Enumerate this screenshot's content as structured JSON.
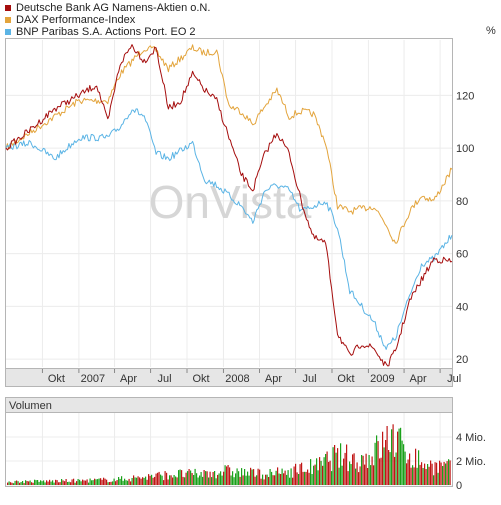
{
  "legend": [
    {
      "name": "Deutsche Bank AG Namens-Aktien o.N.",
      "color": "#a50d0d"
    },
    {
      "name": "DAX Performance-Index",
      "color": "#e3a43c"
    },
    {
      "name": "BNP Paribas S.A. Actions Port. EO 2",
      "color": "#5bb4e5"
    }
  ],
  "price_unit": "%",
  "watermark": "OnVista",
  "volume_title": "Volumen",
  "chart_data": [
    {
      "type": "line",
      "ylabel": "%",
      "ylim": [
        17,
        141
      ],
      "yticks": [
        20,
        40,
        60,
        80,
        100,
        120
      ],
      "x_tick_labels": [
        "Okt",
        "2007",
        "Apr",
        "Jul",
        "Okt",
        "2008",
        "Apr",
        "Jul",
        "Okt",
        "2009",
        "Apr",
        "Jul"
      ],
      "xlim": [
        "2006-07-01",
        "2009-07-31"
      ],
      "grid": true,
      "series": [
        {
          "name": "Deutsche Bank AG Namens-Aktien o.N.",
          "color": "#a50d0d",
          "x": [
            "2006-07-01",
            "2006-09-01",
            "2006-11-01",
            "2007-01-01",
            "2007-02-15",
            "2007-03-15",
            "2007-04-15",
            "2007-05-15",
            "2007-06-15",
            "2007-07-15",
            "2007-08-15",
            "2007-09-15",
            "2007-10-15",
            "2007-11-15",
            "2007-12-15",
            "2008-01-15",
            "2008-02-15",
            "2008-03-15",
            "2008-04-15",
            "2008-05-15",
            "2008-06-15",
            "2008-07-15",
            "2008-08-15",
            "2008-09-15",
            "2008-10-15",
            "2008-11-15",
            "2008-12-15",
            "2009-01-15",
            "2009-02-15",
            "2009-03-10",
            "2009-04-15",
            "2009-05-15",
            "2009-06-15",
            "2009-07-31"
          ],
          "values": [
            100,
            107,
            115,
            120,
            124,
            110,
            132,
            139,
            133,
            138,
            115,
            118,
            128,
            122,
            118,
            104,
            90,
            84,
            98,
            106,
            98,
            80,
            66,
            64,
            30,
            21,
            26,
            24,
            17,
            23,
            42,
            50,
            58,
            57
          ]
        },
        {
          "name": "DAX Performance-Index",
          "color": "#e3a43c",
          "x": [
            "2006-07-01",
            "2006-09-01",
            "2006-11-01",
            "2007-01-01",
            "2007-03-15",
            "2007-04-15",
            "2007-05-15",
            "2007-06-15",
            "2007-07-15",
            "2007-08-15",
            "2007-10-15",
            "2007-11-15",
            "2007-12-15",
            "2008-01-15",
            "2008-02-15",
            "2008-03-15",
            "2008-04-15",
            "2008-05-15",
            "2008-06-15",
            "2008-07-15",
            "2008-08-15",
            "2008-09-15",
            "2008-10-15",
            "2008-11-15",
            "2008-12-15",
            "2009-01-15",
            "2009-02-15",
            "2009-03-10",
            "2009-04-15",
            "2009-05-15",
            "2009-06-15",
            "2009-07-31"
          ],
          "values": [
            100,
            106,
            112,
            118,
            118,
            128,
            133,
            138,
            137,
            130,
            138,
            136,
            137,
            116,
            114,
            109,
            116,
            122,
            112,
            114,
            113,
            102,
            78,
            76,
            77,
            78,
            71,
            64,
            76,
            82,
            80,
            92
          ]
        },
        {
          "name": "BNP Paribas S.A. Actions Port. EO 2",
          "color": "#5bb4e5",
          "x": [
            "2006-07-01",
            "2006-09-01",
            "2006-11-01",
            "2007-01-01",
            "2007-03-15",
            "2007-04-15",
            "2007-05-15",
            "2007-06-15",
            "2007-07-15",
            "2007-08-15",
            "2007-10-15",
            "2007-11-15",
            "2007-12-15",
            "2008-01-15",
            "2008-02-15",
            "2008-03-15",
            "2008-04-15",
            "2008-05-15",
            "2008-06-15",
            "2008-07-15",
            "2008-08-15",
            "2008-09-15",
            "2008-10-15",
            "2008-11-15",
            "2008-12-15",
            "2009-01-15",
            "2009-02-15",
            "2009-03-10",
            "2009-04-15",
            "2009-05-15",
            "2009-06-15",
            "2009-07-31"
          ],
          "values": [
            100,
            102,
            96,
            104,
            104,
            108,
            115,
            112,
            98,
            96,
            102,
            88,
            86,
            82,
            78,
            72,
            84,
            86,
            84,
            76,
            78,
            80,
            70,
            46,
            40,
            34,
            24,
            28,
            44,
            56,
            58,
            67
          ]
        }
      ]
    },
    {
      "type": "bar",
      "title": "Volumen",
      "ylabel": "Mio.",
      "yticks": [
        0,
        2,
        4
      ],
      "ytick_labels": [
        "0",
        "2 Mio.",
        "4 Mio."
      ],
      "ylim": [
        0,
        6
      ],
      "xlim": [
        "2006-07-01",
        "2009-07-31"
      ],
      "colors": {
        "up": "#1aa11a",
        "down": "#c01515"
      },
      "x": [
        "2006-07-01",
        "2006-10-01",
        "2007-01-01",
        "2007-04-01",
        "2007-07-01",
        "2007-09-01",
        "2007-11-01",
        "2008-01-01",
        "2008-03-01",
        "2008-05-01",
        "2008-07-01",
        "2008-09-01",
        "2008-10-01",
        "2008-11-01",
        "2008-12-01",
        "2009-01-01",
        "2009-02-01",
        "2009-03-01",
        "2009-04-01",
        "2009-05-01",
        "2009-06-01",
        "2009-07-31"
      ],
      "values": [
        0.3,
        0.35,
        0.4,
        0.5,
        0.8,
        1.0,
        1.0,
        1.3,
        1.1,
        1.0,
        1.4,
        1.8,
        2.6,
        2.6,
        2.2,
        2.6,
        3.6,
        4.5,
        3.2,
        2.4,
        1.8,
        1.6
      ]
    }
  ]
}
